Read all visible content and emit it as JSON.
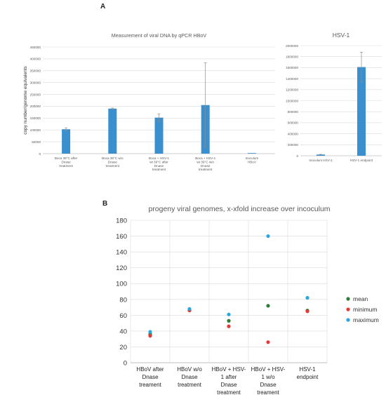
{
  "panel_labels": {
    "a": "A",
    "b": "B"
  },
  "chart_data": [
    {
      "type": "bar",
      "title": "Measurement of viral DNA by qPCR HBoV",
      "ylabel": "copy number/genome equivalents",
      "xlabel": "",
      "ylim": [
        0,
        450000
      ],
      "yticks": [
        0,
        50000,
        100000,
        150000,
        200000,
        250000,
        300000,
        350000,
        400000,
        450000
      ],
      "grid": true,
      "color": "#3a8fce",
      "categories": [
        [
          "Boca 39°C after",
          "Dnase",
          "treatment"
        ],
        [
          "Boca 39°C w/o",
          "Dnase",
          "treatment"
        ],
        [
          "Boca + HSV-1",
          "wt 39°C after",
          "Dnase",
          "treatment"
        ],
        [
          "Boca + HSV-1",
          "wt 39°C w/o",
          "Dnase",
          "treatment"
        ],
        [
          "Inoculum",
          "HBoV"
        ]
      ],
      "values": [
        103000,
        190000,
        152000,
        205000,
        2500
      ],
      "errors": [
        6000,
        2500,
        16000,
        178000,
        0
      ]
    },
    {
      "type": "bar",
      "title": "HSV-1",
      "xlabel": "",
      "ylabel": "",
      "ylim": [
        0,
        2000000
      ],
      "yticks": [
        0,
        200000,
        400000,
        600000,
        800000,
        1000000,
        1200000,
        1400000,
        1600000,
        1800000,
        2000000
      ],
      "grid": true,
      "color": "#3a8fce",
      "categories": [
        [
          "Inoculum HSV-1"
        ],
        [
          "HSV-1 endpoint"
        ]
      ],
      "values": [
        22000,
        1610000
      ],
      "errors": [
        4000,
        270000
      ]
    },
    {
      "type": "scatter",
      "title": "progeny viral genomes, x-xfold increase over incoculum",
      "xlabel": "",
      "ylabel": "",
      "ylim": [
        0,
        180
      ],
      "yticks": [
        0,
        20,
        40,
        60,
        80,
        100,
        120,
        140,
        160,
        180
      ],
      "grid": true,
      "legend_position": "right",
      "categories": [
        [
          "HBoV after",
          "Dnase",
          "treament"
        ],
        [
          "HBoV w/o",
          "Dnase",
          "treatment"
        ],
        [
          "HBoV + HSV-",
          "1 after",
          "Dnase",
          "treatment"
        ],
        [
          "HBoV + HSV-",
          "1 w/o",
          "Dnase",
          "treament"
        ],
        [
          "HSV-1",
          "endpoint"
        ]
      ],
      "series": [
        {
          "name": "mean",
          "color": "#2e7d32",
          "values": [
            36,
            67,
            53,
            72,
            66
          ]
        },
        {
          "name": "minimum",
          "color": "#e53935",
          "values": [
            34,
            66,
            46,
            26,
            65
          ]
        },
        {
          "name": "maximum",
          "color": "#29a8e0",
          "values": [
            39,
            68,
            61,
            160,
            82
          ]
        }
      ]
    }
  ]
}
